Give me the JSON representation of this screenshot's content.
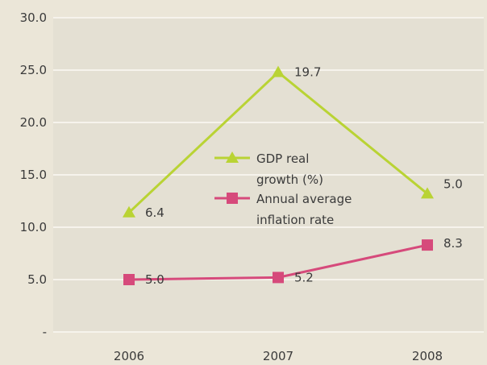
{
  "chart_data": {
    "type": "line",
    "categories": [
      "2006",
      "2007",
      "2008"
    ],
    "series": [
      {
        "name": "GDP real growth (%)",
        "legend_lines": [
          "GDP real",
          "growth (%)"
        ],
        "plotted_values": [
          11.4,
          24.8,
          13.2
        ],
        "labels": [
          "6.4",
          "19.7",
          "5.0"
        ],
        "color": "#b9d334",
        "marker": "triangle"
      },
      {
        "name": "Annual average inflation rate",
        "legend_lines": [
          "Annual average",
          "inflation rate"
        ],
        "plotted_values": [
          5.0,
          5.2,
          8.3
        ],
        "labels": [
          "5.0",
          "5.2",
          "8.3"
        ],
        "color": "#d64a7b",
        "marker": "square"
      }
    ],
    "yticks": [
      "-",
      "5.0",
      "10.0",
      "15.0",
      "20.0",
      "25.0",
      "30.0"
    ],
    "ylim": [
      0,
      30
    ],
    "grid": true,
    "legend": "center",
    "colors": {
      "background": "#ebe6d8",
      "plot_area": "#e4e0d3",
      "grid": "#f6f3ec"
    }
  }
}
